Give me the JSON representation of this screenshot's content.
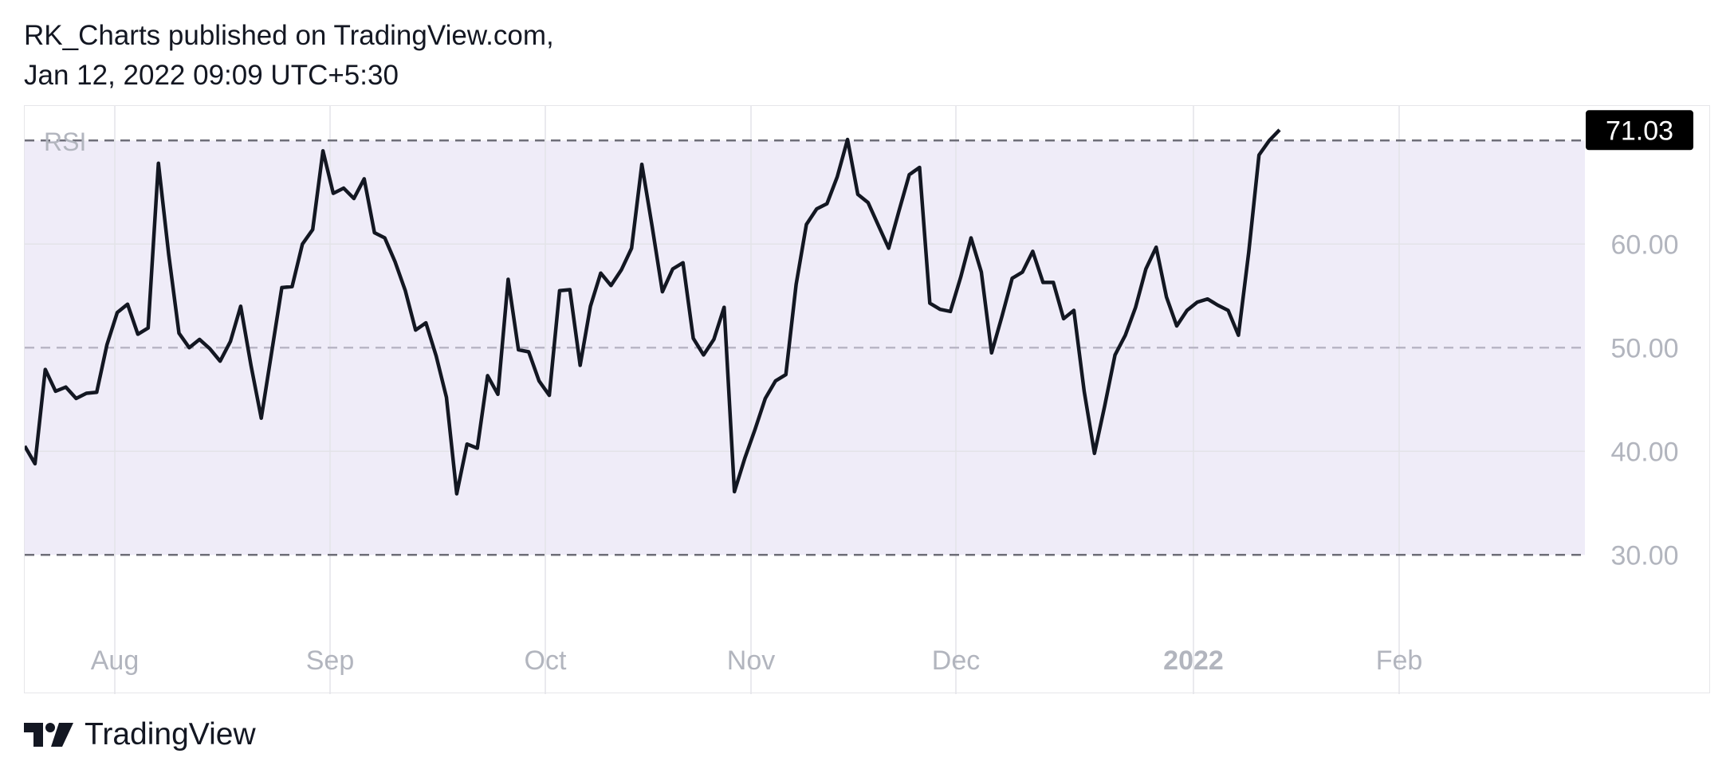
{
  "header": {
    "line1": "RK_Charts published on TradingView.com,",
    "line2": "Jan 12, 2022 09:09 UTC+5:30"
  },
  "footer": {
    "brand": "TradingView"
  },
  "colors": {
    "band": "#efecf8",
    "line": "#131722",
    "grid": "#e3e3e8",
    "axis_text": "#b2b5be",
    "badge_bg": "#000000",
    "badge_text": "#ffffff"
  },
  "chart_data": {
    "type": "line",
    "title": "RSI",
    "ylim": [
      24,
      75
    ],
    "yticks": [
      "30.00",
      "40.00",
      "50.00",
      "60.00"
    ],
    "upper_band": 70,
    "middle_band": 50,
    "lower_band": 30,
    "last_value_label": "71.03",
    "x_ticks": [
      {
        "label": "Aug",
        "x": 8,
        "bold": false
      },
      {
        "label": "Sep",
        "x": 29,
        "bold": false
      },
      {
        "label": "Oct",
        "x": 50,
        "bold": false
      },
      {
        "label": "Nov",
        "x": 70,
        "bold": false
      },
      {
        "label": "Dec",
        "x": 90,
        "bold": false
      },
      {
        "label": "2022",
        "x": 113,
        "bold": true
      },
      {
        "label": "Feb",
        "x": 133,
        "bold": false
      }
    ],
    "series": [
      {
        "values": [
          40.5,
          38.8,
          47.9,
          45.8,
          46.2,
          45.1,
          45.6,
          45.7,
          50.3,
          53.4,
          54.2,
          51.3,
          51.9,
          67.8,
          59.0,
          51.4,
          50.0,
          50.8,
          49.9,
          48.7,
          50.6,
          54.0,
          48.3,
          43.2,
          49.5,
          55.8,
          55.9,
          60.0,
          61.4,
          69.0,
          64.9,
          65.4,
          64.4,
          66.3,
          61.1,
          60.6,
          58.3,
          55.5,
          51.7,
          52.4,
          49.2,
          45.2,
          35.9,
          40.7,
          40.3,
          47.3,
          45.5,
          56.6,
          49.8,
          49.6,
          46.8,
          45.4,
          55.5,
          55.6,
          48.3,
          54.0,
          57.2,
          56.0,
          57.5,
          59.6,
          67.7,
          61.7,
          55.4,
          57.6,
          58.2,
          50.9,
          49.3,
          50.8,
          53.9,
          36.1,
          39.3,
          42.1,
          45.1,
          46.8,
          47.4,
          56.1,
          61.9,
          63.4,
          63.9,
          66.5,
          70.1,
          64.8,
          64.0,
          61.8,
          59.6,
          63.2,
          66.7,
          67.4,
          54.3,
          53.7,
          53.5,
          56.8,
          60.6,
          57.3,
          49.5,
          53.0,
          56.7,
          57.3,
          59.3,
          56.3,
          56.3,
          52.8,
          53.6,
          45.8,
          39.8,
          44.4,
          49.3,
          51.2,
          53.9,
          57.6,
          59.7,
          54.9,
          52.1,
          53.6,
          54.4,
          54.7,
          54.1,
          53.6,
          51.2,
          59.2,
          68.6,
          70.0,
          71.03
        ]
      }
    ]
  }
}
